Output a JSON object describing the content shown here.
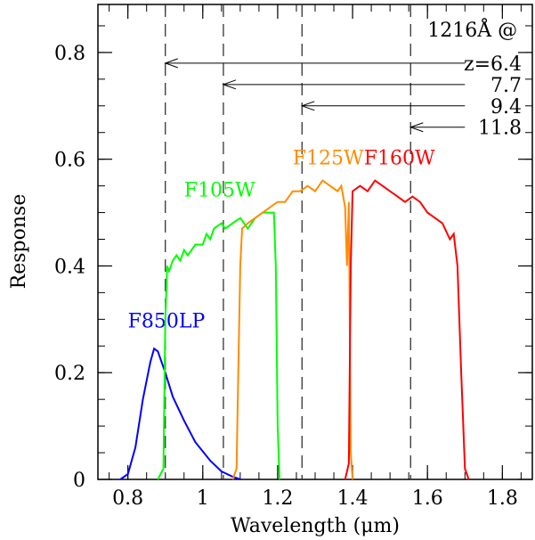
{
  "chart_data": {
    "type": "line",
    "xlabel": "Wavelength (μm)",
    "ylabel": "Response",
    "xlim": [
      0.72,
      1.88
    ],
    "ylim": [
      0,
      0.89
    ],
    "xticks": [
      {
        "value": 0.8,
        "label": "0.8"
      },
      {
        "value": 1.0,
        "label": "1"
      },
      {
        "value": 1.2,
        "label": "1.2"
      },
      {
        "value": 1.4,
        "label": "1.4"
      },
      {
        "value": 1.6,
        "label": "1.6"
      },
      {
        "value": 1.8,
        "label": "1.8"
      }
    ],
    "yticks": [
      {
        "value": 0,
        "label": "0"
      },
      {
        "value": 0.2,
        "label": "0.2"
      },
      {
        "value": 0.4,
        "label": "0.4"
      },
      {
        "value": 0.6,
        "label": "0.6"
      },
      {
        "value": 0.8,
        "label": "0.8"
      }
    ],
    "series": [
      {
        "name": "F850LP",
        "color": "#0000ff",
        "label_at": [
          0.8,
          0.285
        ],
        "points": [
          [
            0.78,
            0.0
          ],
          [
            0.8,
            0.01
          ],
          [
            0.82,
            0.06
          ],
          [
            0.84,
            0.15
          ],
          [
            0.86,
            0.22
          ],
          [
            0.87,
            0.245
          ],
          [
            0.88,
            0.24
          ],
          [
            0.9,
            0.2
          ],
          [
            0.92,
            0.155
          ],
          [
            0.95,
            0.11
          ],
          [
            0.98,
            0.07
          ],
          [
            1.02,
            0.035
          ],
          [
            1.05,
            0.015
          ],
          [
            1.08,
            0.005
          ],
          [
            1.1,
            0.0
          ]
        ]
      },
      {
        "name": "F105W",
        "color": "#00ff00",
        "label_at": [
          0.95,
          0.53
        ],
        "points": [
          [
            0.88,
            0.0
          ],
          [
            0.895,
            0.02
          ],
          [
            0.9,
            0.3
          ],
          [
            0.905,
            0.4
          ],
          [
            0.91,
            0.39
          ],
          [
            0.92,
            0.41
          ],
          [
            0.93,
            0.42
          ],
          [
            0.94,
            0.41
          ],
          [
            0.95,
            0.43
          ],
          [
            0.96,
            0.42
          ],
          [
            0.98,
            0.44
          ],
          [
            1.0,
            0.44
          ],
          [
            1.01,
            0.46
          ],
          [
            1.02,
            0.45
          ],
          [
            1.03,
            0.47
          ],
          [
            1.05,
            0.48
          ],
          [
            1.06,
            0.47
          ],
          [
            1.08,
            0.48
          ],
          [
            1.1,
            0.49
          ],
          [
            1.12,
            0.47
          ],
          [
            1.14,
            0.49
          ],
          [
            1.16,
            0.5
          ],
          [
            1.18,
            0.5
          ],
          [
            1.19,
            0.5
          ],
          [
            1.195,
            0.4
          ],
          [
            1.2,
            0.1
          ],
          [
            1.205,
            0.0
          ]
        ]
      },
      {
        "name": "F125W",
        "color": "#ff8c00",
        "label_at": [
          1.24,
          0.59
        ],
        "points": [
          [
            1.08,
            0.0
          ],
          [
            1.09,
            0.02
          ],
          [
            1.1,
            0.4
          ],
          [
            1.105,
            0.47
          ],
          [
            1.12,
            0.48
          ],
          [
            1.14,
            0.49
          ],
          [
            1.16,
            0.5
          ],
          [
            1.18,
            0.51
          ],
          [
            1.2,
            0.52
          ],
          [
            1.22,
            0.52
          ],
          [
            1.24,
            0.54
          ],
          [
            1.26,
            0.54
          ],
          [
            1.28,
            0.55
          ],
          [
            1.3,
            0.54
          ],
          [
            1.32,
            0.56
          ],
          [
            1.34,
            0.55
          ],
          [
            1.36,
            0.54
          ],
          [
            1.37,
            0.55
          ],
          [
            1.38,
            0.51
          ],
          [
            1.385,
            0.4
          ],
          [
            1.39,
            0.52
          ],
          [
            1.395,
            0.05
          ],
          [
            1.4,
            0.0
          ]
        ]
      },
      {
        "name": "F160W",
        "color": "#ff0000",
        "label_at": [
          1.43,
          0.59
        ],
        "points": [
          [
            1.38,
            0.0
          ],
          [
            1.39,
            0.03
          ],
          [
            1.395,
            0.4
          ],
          [
            1.4,
            0.54
          ],
          [
            1.42,
            0.55
          ],
          [
            1.44,
            0.54
          ],
          [
            1.46,
            0.56
          ],
          [
            1.48,
            0.55
          ],
          [
            1.5,
            0.54
          ],
          [
            1.52,
            0.53
          ],
          [
            1.54,
            0.52
          ],
          [
            1.56,
            0.53
          ],
          [
            1.58,
            0.52
          ],
          [
            1.6,
            0.5
          ],
          [
            1.62,
            0.49
          ],
          [
            1.64,
            0.48
          ],
          [
            1.66,
            0.45
          ],
          [
            1.67,
            0.46
          ],
          [
            1.68,
            0.4
          ],
          [
            1.69,
            0.2
          ],
          [
            1.7,
            0.02
          ],
          [
            1.71,
            0.0
          ]
        ]
      }
    ],
    "vlines": [
      0.9,
      1.055,
      1.265,
      1.555
    ],
    "annotation": {
      "header": "1216Å @",
      "header_at": [
        1.6,
        0.83
      ],
      "arrows": [
        {
          "label": "z=6.4",
          "x_target": 0.9,
          "y": 0.78
        },
        {
          "label": "7.7",
          "x_target": 1.055,
          "y": 0.74
        },
        {
          "label": "9.4",
          "x_target": 1.265,
          "y": 0.7
        },
        {
          "label": "11.8",
          "x_target": 1.555,
          "y": 0.66
        }
      ]
    },
    "grid": false
  }
}
